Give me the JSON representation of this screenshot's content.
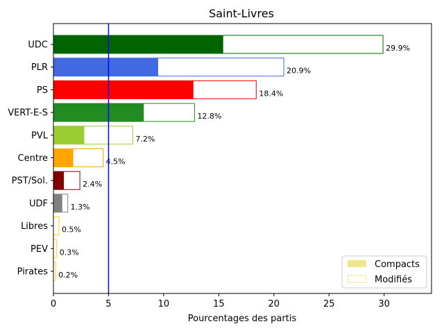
{
  "chart_data": {
    "type": "bar",
    "orientation": "horizontal",
    "title": "Saint-Livres",
    "xlabel": "Pourcentages des partis",
    "ylabel": "",
    "xlim": [
      0,
      34.3
    ],
    "xticks": [
      "0",
      "5",
      "10",
      "15",
      "20",
      "25",
      "30"
    ],
    "threshold_line": {
      "value": 5,
      "color": "#0000ff"
    },
    "legend": {
      "placement": "lower-right",
      "entries": [
        {
          "label": "Compacts",
          "style": "filled",
          "color": "#f0e68c"
        },
        {
          "label": "Modifiés",
          "style": "outline",
          "color": "#f0e68c"
        }
      ]
    },
    "categories": [
      "UDC",
      "PLR",
      "PS",
      "VERT-E-S",
      "PVL",
      "Centre",
      "PST/Sol.",
      "UDF",
      "Libres",
      "PEV",
      "Pirates"
    ],
    "colors": [
      "#006400",
      "#4169e1",
      "#ff0000",
      "#228b22",
      "#9acd32",
      "#ffa500",
      "#800000",
      "#808080",
      "#ffd700",
      "#ffd700",
      "#ffd700"
    ],
    "series": [
      {
        "name": "Compacts",
        "values": [
          15.4,
          9.5,
          12.7,
          8.2,
          2.8,
          1.8,
          0.95,
          0.8,
          0.0,
          0.0,
          0.0
        ]
      },
      {
        "name": "Modifiés",
        "values": [
          29.9,
          20.9,
          18.4,
          12.8,
          7.2,
          4.5,
          2.4,
          1.3,
          0.5,
          0.3,
          0.2
        ]
      }
    ],
    "value_labels": [
      "29.9%",
      "20.9%",
      "18.4%",
      "12.8%",
      "7.2%",
      "4.5%",
      "2.4%",
      "1.3%",
      "0.5%",
      "0.3%",
      "0.2%"
    ]
  }
}
